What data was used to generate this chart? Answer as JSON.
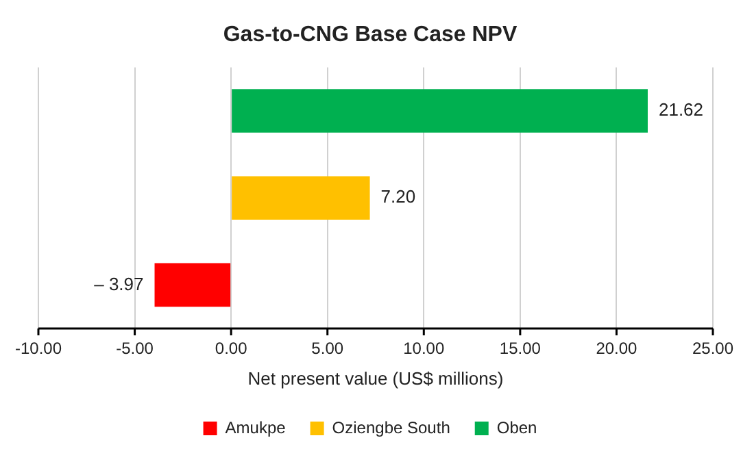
{
  "chart_data": {
    "type": "bar",
    "orientation": "horizontal",
    "title": "Gas-to-CNG Base Case NPV",
    "xlabel": "Net present value (US$ millions)",
    "categories": [
      null,
      null,
      null
    ],
    "series": [
      {
        "name": "Amukpe",
        "color": "#ff0000",
        "values": [
          null,
          null,
          -3.97
        ],
        "value_labels": [
          null,
          null,
          "– 3.97"
        ]
      },
      {
        "name": "Oziengbe South",
        "color": "#ffc000",
        "values": [
          null,
          7.2,
          null
        ],
        "value_labels": [
          null,
          "7.20",
          null
        ]
      },
      {
        "name": "Oben",
        "color": "#00b050",
        "values": [
          21.62,
          null,
          null
        ],
        "value_labels": [
          "21.62",
          null,
          null
        ]
      }
    ],
    "xlim": [
      -10,
      25
    ],
    "xticks": [
      {
        "value": -10,
        "label": "-10.00"
      },
      {
        "value": -5,
        "label": "-5.00"
      },
      {
        "value": 0,
        "label": "0.00"
      },
      {
        "value": 5,
        "label": "5.00"
      },
      {
        "value": 10,
        "label": "10.00"
      },
      {
        "value": 15,
        "label": "15.00"
      },
      {
        "value": 20,
        "label": "20.00"
      },
      {
        "value": 25,
        "label": "25.00"
      }
    ],
    "grid": "x",
    "legend": "bottom"
  }
}
